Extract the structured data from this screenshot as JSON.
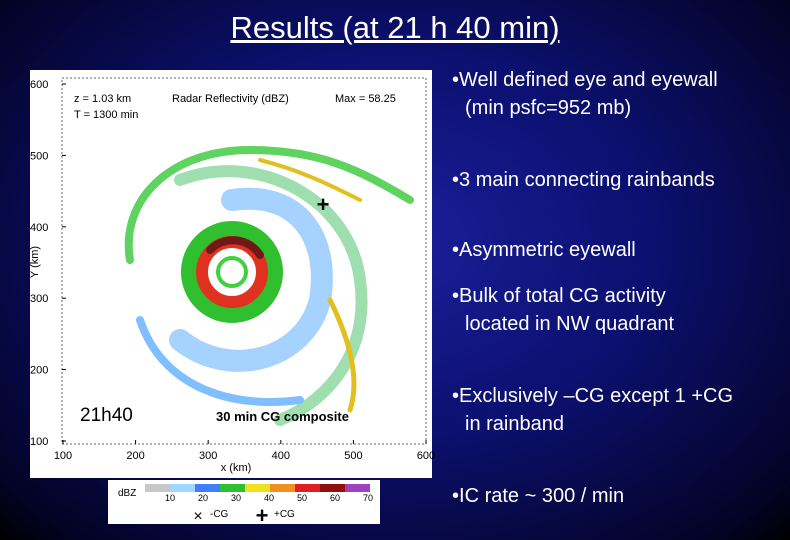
{
  "title": "Results (at 21 h 40 min)",
  "bullets": [
    "Well defined eye and eyewall (min psfc=952 mb)",
    "3 main connecting rainbands",
    "Asymmetric eyewall",
    "Bulk of total CG activity located in NW quadrant",
    "Exclusively –CG except 1 +CG in rainband",
    "IC rate ~ 300 / min"
  ],
  "figure": {
    "height": "z = 1.03 km",
    "time": "T = 1300 min",
    "field": "Radar Reflectivity (dBZ)",
    "max": "Max = 58.25",
    "x_label": "x (km)",
    "y_label": "Y (km)",
    "x_ticks": [
      "100",
      "200",
      "300",
      "400",
      "500",
      "600"
    ],
    "y_ticks": [
      "600",
      "500",
      "400",
      "300",
      "200",
      "100"
    ],
    "time_label": "21h40",
    "composite_label": "30 min CG composite",
    "colorbar": {
      "label": "dBZ",
      "ticks": [
        "10",
        "20",
        "30",
        "40",
        "50",
        "60",
        "70"
      ]
    },
    "legend": [
      "-CG",
      "+CG"
    ]
  }
}
